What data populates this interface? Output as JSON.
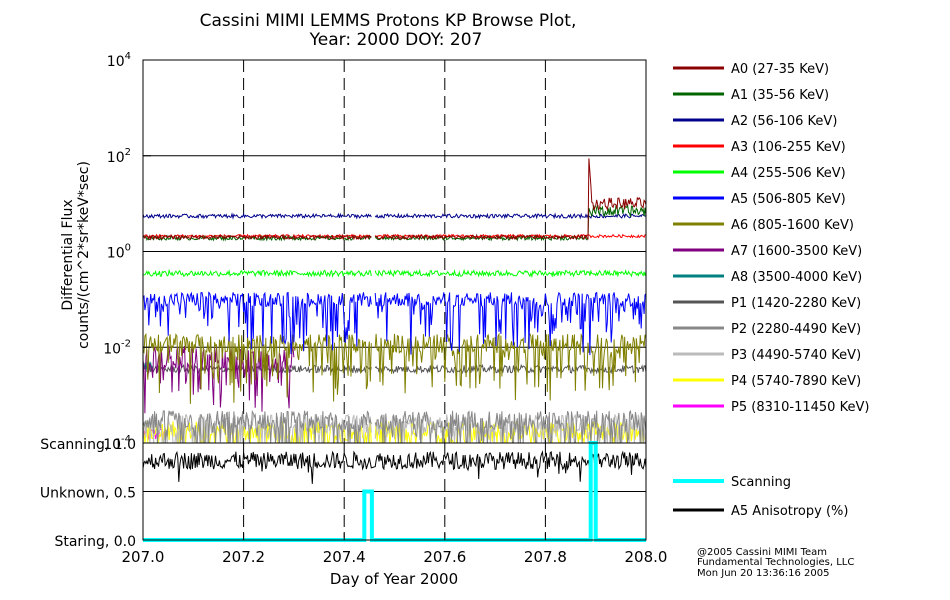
{
  "chart_data": {
    "type": "line",
    "title_line1": "Cassini MIMI LEMMS Protons KP Browse Plot,",
    "title_line2": "Year: 2000 DOY: 207",
    "ylabel_line1": "Differential Flux",
    "ylabel_line2": "counts/(cm^2*sr*keV*sec)",
    "xlabel": "Day of Year 2000",
    "y_scale": "log",
    "ylim": [
      0.0001,
      10000
    ],
    "xlim": [
      207.0,
      208.0
    ],
    "x_ticks": [
      {
        "value": 207.0,
        "label": "207.0"
      },
      {
        "value": 207.2,
        "label": "207.2"
      },
      {
        "value": 207.4,
        "label": "207.4"
      },
      {
        "value": 207.6,
        "label": "207.6"
      },
      {
        "value": 207.8,
        "label": "207.8"
      },
      {
        "value": 208.0,
        "label": "208.0"
      }
    ],
    "y_ticks": [
      {
        "value": 0.0001,
        "base": "10",
        "exp": "-4"
      },
      {
        "value": 0.01,
        "base": "10",
        "exp": "-2"
      },
      {
        "value": 1,
        "base": "10",
        "exp": "0"
      },
      {
        "value": 100,
        "base": "10",
        "exp": "2"
      },
      {
        "value": 10000,
        "base": "10",
        "exp": "4"
      }
    ],
    "grid": true,
    "legend_position": "right",
    "data_gap": [
      207.455,
      207.46
    ],
    "series": [
      {
        "name": "A0 (27-35 KeV)",
        "color": "#8b0000",
        "base": 2.0,
        "noise": 0.04,
        "event_start": 207.885,
        "event_level": 10,
        "event_peak": 150
      },
      {
        "name": "A1 (35-56 KeV)",
        "color": "#006400",
        "base": 1.9,
        "noise": 0.04,
        "event_start": 207.885,
        "event_level": 7
      },
      {
        "name": "A2 (56-106 KeV)",
        "color": "#00008b",
        "base": 5.5,
        "noise": 0.04
      },
      {
        "name": "A3 (106-255 KeV)",
        "color": "#ff0000",
        "base": 2.1,
        "noise": 0.03
      },
      {
        "name": "A4 (255-506 KeV)",
        "color": "#00ff00",
        "base": 0.35,
        "noise": 0.06
      },
      {
        "name": "A5 (506-805 KeV)",
        "color": "#0000ff",
        "base": 0.1,
        "noise": 0.15,
        "spiky": true
      },
      {
        "name": "A6 (805-1600 KeV)",
        "color": "#808000",
        "base": 0.012,
        "noise": 0.2,
        "spiky": true
      },
      {
        "name": "A7 (1600-3500 KeV)",
        "color": "#800080",
        "base": 0.006,
        "noise": 0.25,
        "spiky": true,
        "x_max": 207.3
      },
      {
        "name": "A8 (3500-4000 KeV)",
        "color": "#008080",
        "base": 0.004,
        "noise": 0.1,
        "x_max": 207.02
      },
      {
        "name": "P1 (1420-2280 KeV)",
        "color": "#555555",
        "base": 0.0035,
        "noise": 0.08
      },
      {
        "name": "P2 (2280-4490 KeV)",
        "color": "#888888",
        "base": 0.0003,
        "noise": 0.2,
        "spiky": true
      },
      {
        "name": "P3 (4490-5740 KeV)",
        "color": "#bbbbbb",
        "base": 0.00025,
        "noise": 0.2,
        "spiky": true
      },
      {
        "name": "P4 (5740-7890 KeV)",
        "color": "#ffff00",
        "base": 0.00018,
        "noise": 0.2,
        "spiky": true
      },
      {
        "name": "P5 (8310-11450 KeV)",
        "color": "#ff00ff",
        "base": 0.00015,
        "noise": 0.15,
        "x_max": 207.05
      }
    ],
    "lower_panel": {
      "ylim": [
        0.0,
        1.0
      ],
      "y_ticks": [
        {
          "value": 1.0,
          "label": "Scanning, 1.0"
        },
        {
          "value": 0.5,
          "label": "Unknown, 0.5"
        },
        {
          "value": 0.0,
          "label": "Staring, 0.0"
        }
      ],
      "scanning_series": {
        "name": "Scanning",
        "color": "#00ffff",
        "points": [
          [
            207.0,
            0.0
          ],
          [
            207.44,
            0.0
          ],
          [
            207.44,
            0.5
          ],
          [
            207.455,
            0.5
          ],
          [
            207.455,
            0.0
          ],
          [
            207.89,
            0.0
          ],
          [
            207.89,
            1.0
          ],
          [
            207.9,
            1.0
          ],
          [
            207.9,
            0.0
          ],
          [
            208.0,
            0.0
          ]
        ]
      },
      "anisotropy_series": {
        "name": "A5 Anisotropy (%)",
        "color": "#000000",
        "base": 0.82
      }
    }
  },
  "footer": {
    "line1": "@2005 Cassini MIMI Team",
    "line2": "Fundamental Technologies, LLC",
    "line3": "Mon Jun 20 13:36:16 2005"
  }
}
